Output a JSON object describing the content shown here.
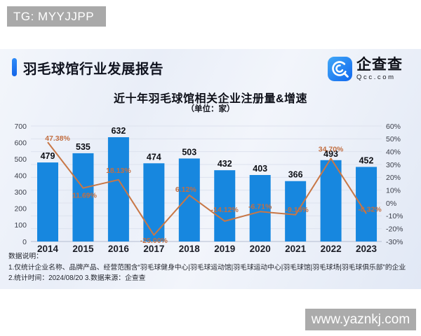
{
  "page": {
    "tg_label": "TG: MYYJJPP",
    "watermark": "www.yaznkj.com"
  },
  "header": {
    "title": "羽毛球馆行业发展报告",
    "logo": {
      "name": "企查查",
      "domain": "Qcc.com"
    }
  },
  "chart_data": {
    "type": "bar",
    "title": "近十年羽毛球馆相关企业注册量&增速",
    "subtitle": "（单位：家）",
    "categories": [
      "2014",
      "2015",
      "2016",
      "2017",
      "2018",
      "2019",
      "2020",
      "2021",
      "2022",
      "2023"
    ],
    "series": [
      {
        "name": "注册量",
        "type": "bar",
        "values": [
          479,
          535,
          632,
          474,
          503,
          432,
          403,
          366,
          493,
          452
        ],
        "color": "#1787df"
      },
      {
        "name": "增速",
        "type": "line",
        "values": [
          47.38,
          11.69,
          18.13,
          -25.0,
          6.12,
          -14.12,
          -6.71,
          -9.18,
          34.7,
          -8.32
        ],
        "labels": [
          "47.38%",
          "11.69%",
          "18.13%",
          "-25.00%",
          "6.12%",
          "-14.12%",
          "-6.71%",
          "-9.18%",
          "34.70%",
          "-8.32%"
        ],
        "color": "#c87746",
        "label_color": "#c26f42"
      }
    ],
    "left_axis": {
      "min": 0,
      "max": 700,
      "ticks": [
        "700",
        "600",
        "500",
        "400",
        "300",
        "200",
        "100",
        "0"
      ]
    },
    "right_axis": {
      "min": -30,
      "max": 60,
      "ticks": [
        "60%",
        "50%",
        "40%",
        "30%",
        "20%",
        "10%",
        "0%",
        "-10%",
        "-20%",
        "-30%"
      ]
    },
    "grid": true,
    "legend": "none",
    "grid_color": "#dde2ee",
    "baseline_color": "#b4bdd0",
    "value_label_color": "#0d0f15",
    "axis_label_color": "#3c3f4a",
    "year_label_color": "#1b1d26"
  },
  "notes": {
    "heading": "数据说明：",
    "line1": "1.仅统计企业名称、品牌产品、经营范围含“羽毛球健身中心|羽毛球运动馆|羽毛球运动中心|羽毛球馆|羽毛球场|羽毛球俱乐部”的企业",
    "line2": "2.统计时间：2024/08/20    3.数据来源：企查查"
  }
}
